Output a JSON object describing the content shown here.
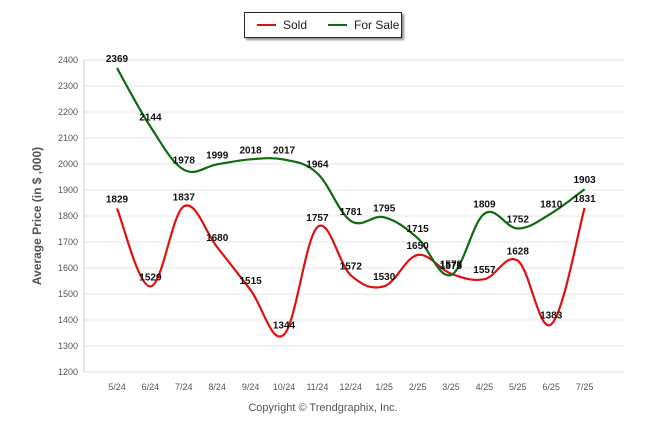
{
  "chart_data": {
    "type": "line",
    "categories": [
      "5/24",
      "6/24",
      "7/24",
      "8/24",
      "9/24",
      "10/24",
      "11/24",
      "12/24",
      "1/25",
      "2/25",
      "3/25",
      "4/25",
      "5/25",
      "6/25",
      "7/25"
    ],
    "series": [
      {
        "name": "Sold",
        "color": "#e01010",
        "values": [
          1829,
          1529,
          1837,
          1680,
          1515,
          1344,
          1757,
          1572,
          1530,
          1650,
          1578,
          1557,
          1628,
          1383,
          1831
        ]
      },
      {
        "name": "For Sale",
        "color": "#0e6b0e",
        "values": [
          2369,
          2144,
          1978,
          1999,
          2018,
          2017,
          1964,
          1781,
          1795,
          1715,
          1573,
          1809,
          1752,
          1810,
          1903
        ]
      }
    ],
    "xlabel": "",
    "ylabel": "Average Price (in $ ,000)",
    "ylim": [
      1200,
      2400
    ],
    "yticks": [
      1200,
      1300,
      1400,
      1500,
      1600,
      1700,
      1800,
      1900,
      2000,
      2100,
      2200,
      2300,
      2400
    ],
    "grid": true,
    "legend_position": "top-center"
  },
  "legend": {
    "sold_label": "Sold",
    "for_sale_label": "For Sale"
  },
  "footer": {
    "copyright": "Copyright © Trendgraphix, Inc."
  }
}
